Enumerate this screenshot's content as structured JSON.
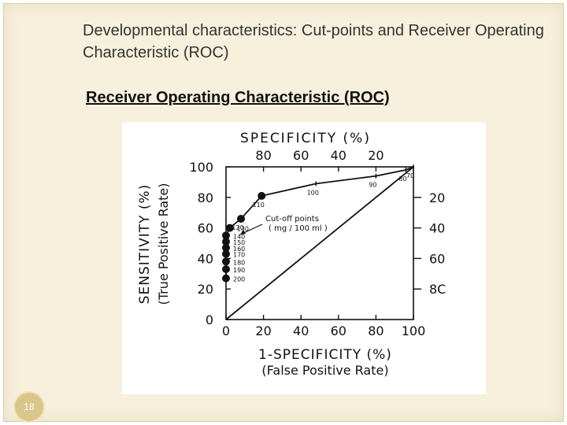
{
  "slide": {
    "title": "Developmental characteristics: Cut-points and Receiver Operating Characteristic (ROC)",
    "subtitle": "Receiver Operating Characteristic (ROC)",
    "page_number": "18"
  },
  "chart_data": {
    "type": "line",
    "title": "",
    "xlabel": "1-SPECIFICITY (%)",
    "xlabel_sub": "(False Positive Rate)",
    "ylabel": "SENSITIVITY (%)",
    "ylabel_sub": "(True Positive Rate)",
    "top_axis_label": "SPECIFICITY (%)",
    "right_axis_label": "",
    "xlim": [
      0,
      100
    ],
    "ylim": [
      0,
      100
    ],
    "x_ticks": [
      "0",
      "20",
      "40",
      "60",
      "80",
      "100"
    ],
    "y_ticks": [
      "0",
      "20",
      "40",
      "60",
      "80",
      "100"
    ],
    "top_ticks": [
      "80",
      "60",
      "40",
      "20"
    ],
    "right_ticks": [
      "20",
      "40",
      "60",
      "8C"
    ],
    "annotation": "Cut-off points\n( mg / 100 ml )",
    "series": [
      {
        "x": [
          0,
          0,
          0,
          0,
          0,
          0,
          0,
          2,
          8,
          19,
          48,
          80,
          96,
          100
        ],
        "y": [
          27,
          33,
          38,
          43,
          47,
          51,
          55,
          60,
          66,
          81,
          89,
          94,
          98,
          100
        ],
        "labels": [
          "200",
          "190",
          "180",
          "170",
          "160",
          "150",
          "140",
          "130",
          "120",
          "110",
          "100",
          "90",
          "80",
          "70"
        ],
        "label_positions": [
          "right",
          "right",
          "right",
          "right",
          "right",
          "right",
          "right",
          "right",
          "below",
          "below",
          "below",
          "below",
          "below",
          "below"
        ],
        "markers": [
          true,
          true,
          true,
          true,
          true,
          true,
          true,
          true,
          true,
          true,
          false,
          false,
          false,
          false
        ]
      }
    ]
  }
}
